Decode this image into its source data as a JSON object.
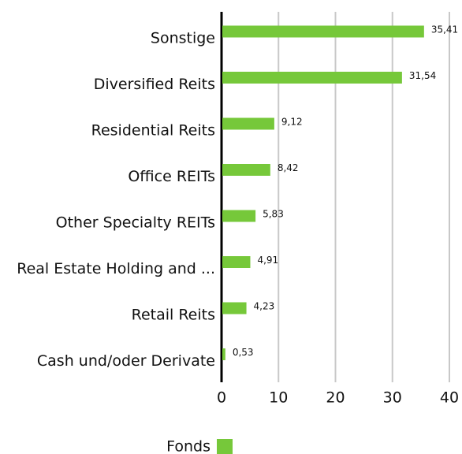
{
  "chart_data": {
    "type": "bar",
    "orientation": "horizontal",
    "categories": [
      "Sonstige",
      "Diversified Reits",
      "Residential Reits",
      "Office REITs",
      "Other Specialty REITs",
      "Real Estate Holding and ...",
      "Retail Reits",
      "Cash und/oder Derivate"
    ],
    "series": [
      {
        "name": "Fonds",
        "color": "#76c83a",
        "values": [
          35.41,
          31.54,
          9.12,
          8.42,
          5.83,
          4.91,
          4.23,
          0.53
        ],
        "value_labels": [
          "35,41",
          "31,54",
          "9,12",
          "8,42",
          "5,83",
          "4,91",
          "4,23",
          "0,53"
        ]
      }
    ],
    "xlim": [
      0,
      40
    ],
    "xticks": [
      0,
      10,
      20,
      30,
      40
    ],
    "grid": true
  }
}
